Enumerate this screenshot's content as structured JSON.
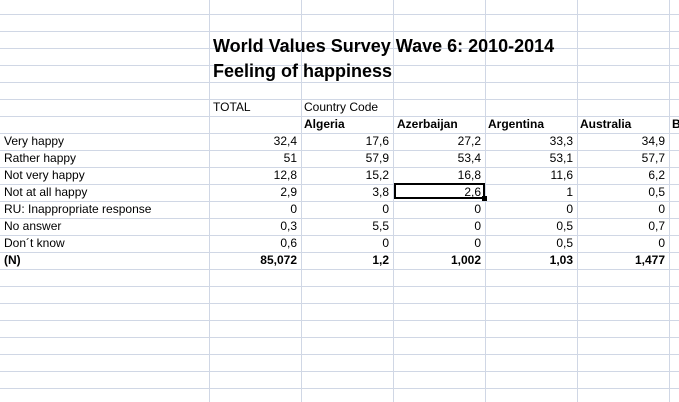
{
  "title_line1": "World Values Survey Wave 6: 2010-2014",
  "title_line2": "Feeling of happiness",
  "header": {
    "total": "TOTAL",
    "country_code": "Country Code",
    "columns": [
      "Algeria",
      "Azerbaijan",
      "Argentina",
      "Australia",
      "B"
    ]
  },
  "rows": [
    {
      "label": "Very happy",
      "values": [
        "32,4",
        "17,6",
        "27,2",
        "33,3",
        "34,9"
      ]
    },
    {
      "label": "Rather happy",
      "values": [
        "51",
        "57,9",
        "53,4",
        "53,1",
        "57,7"
      ]
    },
    {
      "label": "Not very happy",
      "values": [
        "12,8",
        "15,2",
        "16,8",
        "11,6",
        "6,2"
      ]
    },
    {
      "label": "Not at all happy",
      "values": [
        "2,9",
        "3,8",
        "2,6",
        "1",
        "0,5"
      ]
    },
    {
      "label": "RU: Inappropriate response",
      "values": [
        "0",
        "0",
        "0",
        "0",
        "0"
      ]
    },
    {
      "label": "No answer",
      "values": [
        "0,3",
        "5,5",
        "0",
        "0,5",
        "0,7"
      ]
    },
    {
      "label": "Don´t know",
      "values": [
        "0,6",
        "0",
        "0",
        "0,5",
        "0"
      ]
    },
    {
      "label": "(N)",
      "values": [
        "85,072",
        "1,2",
        "1,002",
        "1,03",
        "1,477"
      ]
    }
  ]
}
